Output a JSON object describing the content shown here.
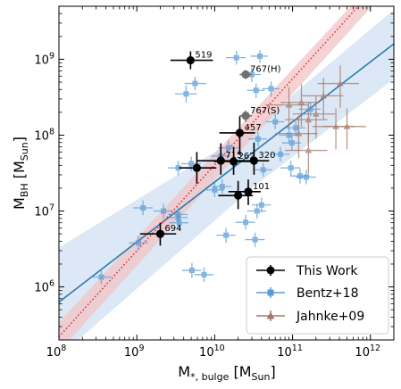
{
  "chart_data": {
    "type": "scatter",
    "xscale": "log",
    "yscale": "log",
    "xlim": [
      100000000.0,
      2000000000000.0
    ],
    "ylim": [
      200000.0,
      5000000000.0
    ],
    "xlabel": {
      "base": "M",
      "sub": "*, bulge",
      "unit_base": "M",
      "unit_sub": "Sun"
    },
    "ylabel": {
      "base": "M",
      "sub": "BH",
      "unit_base": "M",
      "unit_sub": "Sun"
    },
    "x_ticks": [
      {
        "value": 100000000.0,
        "base": "10",
        "exp": "8"
      },
      {
        "value": 1000000000.0,
        "base": "10",
        "exp": "9"
      },
      {
        "value": 10000000000.0,
        "base": "10",
        "exp": "10"
      },
      {
        "value": 100000000000.0,
        "base": "10",
        "exp": "11"
      },
      {
        "value": 1000000000000.0,
        "base": "10",
        "exp": "12"
      }
    ],
    "y_ticks": [
      {
        "value": 1000000.0,
        "base": "10",
        "exp": "6"
      },
      {
        "value": 10000000.0,
        "base": "10",
        "exp": "7"
      },
      {
        "value": 100000000.0,
        "base": "10",
        "exp": "8"
      },
      {
        "value": 1000000000.0,
        "base": "10",
        "exp": "9"
      }
    ],
    "grid": false,
    "legend_position": "bottom-right",
    "legend": [
      "This Work",
      "Bentz+18",
      "Jahnke+09"
    ],
    "colors": {
      "this_work": "#000000",
      "this_work_gray": "#6e6e6e",
      "bentz": "#5b9bd5",
      "jahnke": "#a47866",
      "fit_line": "#2a7ab0",
      "fit_band": "#c9dcf0",
      "dotted": "#e0242b",
      "dotted_band": "#f2c4c6"
    },
    "fit_line": {
      "points": [
        [
          100000000.0,
          630000.0
        ],
        [
          2000000000000.0,
          1600000000.0
        ]
      ]
    },
    "fit_band": {
      "upper": [
        [
          100000000.0,
          3300000.0
        ],
        [
          30000000000.0,
          120000000.0
        ],
        [
          2000000000000.0,
          4500000000.0
        ]
      ],
      "lower": [
        [
          100000000.0,
          120000.0
        ],
        [
          30000000000.0,
          20000000.0
        ],
        [
          2000000000000.0,
          550000000.0
        ]
      ]
    },
    "dotted_line": {
      "points": [
        [
          100000000.0,
          220000.0
        ],
        [
          1000000000000.0,
          7500000000.0
        ]
      ]
    },
    "dotted_band": {
      "upper": [
        [
          100000000.0,
          340000.0
        ],
        [
          800000000000.0,
          7500000000.0
        ]
      ],
      "lower": [
        [
          100000000.0,
          140000.0
        ],
        [
          1500000000000.0,
          7500000000.0
        ]
      ]
    },
    "series": [
      {
        "name": "This Work",
        "marker": "circle",
        "points": [
          {
            "x": 4900000000.0,
            "y": 970000000.0,
            "xerr": [
              2200000000.0,
              4600000000.0
            ],
            "yerr": [
              230000000.0,
              300000000.0
            ],
            "label": "519",
            "gray": false
          },
          {
            "x": 25000000000.0,
            "y": 630000000.0,
            "xerr": [
              4000000000.0,
              5000000000.0
            ],
            "yerr": [
              80000000.0,
              90000000.0
            ],
            "label": "767(H)",
            "gray": true
          },
          {
            "x": 25000000000.0,
            "y": 180000000.0,
            "xerr": [
              4000000000.0,
              5000000000.0
            ],
            "yerr": [
              30000000.0,
              30000000.0
            ],
            "label": "767(S)",
            "gray": true
          },
          {
            "x": 21000000000.0,
            "y": 107000000.0,
            "xerr": [
              9500000000.0,
              12000000000.0
            ],
            "yerr": [
              52000000.0,
              70000000.0
            ],
            "label": "457",
            "gray": false
          },
          {
            "x": 12000000000.0,
            "y": 46000000.0,
            "xerr": [
              6000000000.0,
              10000000000.0
            ],
            "yerr": [
              16000000.0,
              32000000.0
            ],
            "label": "715",
            "gray": false
          },
          {
            "x": 17500000000.0,
            "y": 45000000.0,
            "xerr": [
              7700000000.0,
              11000000000.0
            ],
            "yerr": [
              15000000.0,
              25000000.0
            ],
            "label": "262",
            "gray": false
          },
          {
            "x": 32000000000.0,
            "y": 46000000.0,
            "xerr": [
              14000000000.0,
              18000000000.0
            ],
            "yerr": [
              16000000.0,
              34000000.0
            ],
            "label": "320",
            "gray": false
          },
          {
            "x": 5900000000.0,
            "y": 37000000.0,
            "xerr": [
              2400000000.0,
              4600000000.0
            ],
            "yerr": [
              14000000.0,
              23000000.0
            ],
            "label": "",
            "gray": false
          },
          {
            "x": 20000000000.0,
            "y": 16000000.0,
            "xerr": [
              8900000000.0,
              11000000000.0
            ],
            "yerr": [
              5400000.0,
              8900000.0
            ],
            "label": "",
            "gray": false
          },
          {
            "x": 27000000000.0,
            "y": 18000000.0,
            "xerr": [
              12000000000.0,
              12000000000.0
            ],
            "yerr": [
              6000000.0,
              8000000.0
            ],
            "label": "101",
            "gray": false
          },
          {
            "x": 2000000000.0,
            "y": 5000000.0,
            "xerr": [
              900000000.0,
              1200000000.0
            ],
            "yerr": [
              1500000.0,
              2000000.0
            ],
            "label": "694",
            "gray": false
          }
        ]
      },
      {
        "name": "Bentz+18",
        "marker": "square",
        "points": [
          {
            "x": 5600000000.0,
            "y": 480000000.0,
            "xerr": [
              1500000000.0,
              2200000000.0
            ],
            "yerr": [
              90000000.0,
              110000000.0
            ]
          },
          {
            "x": 19000000000.0,
            "y": 1050000000.0,
            "xerr": [
              5000000000.0,
              6000000000.0
            ],
            "yerr": [
              200000000.0,
              240000000.0
            ]
          },
          {
            "x": 4300000000.0,
            "y": 350000000.0,
            "xerr": [
              1200000000.0,
              1600000000.0
            ],
            "yerr": [
              80000000.0,
              100000000.0
            ]
          },
          {
            "x": 38000000000.0,
            "y": 1100000000.0,
            "xerr": [
              9000000000.0,
              10000000000.0
            ],
            "yerr": [
              200000000.0,
              220000000.0
            ]
          },
          {
            "x": 30000000000.0,
            "y": 630000000.0,
            "xerr": [
              7000000000.0,
              9000000000.0
            ],
            "yerr": [
              130000000.0,
              150000000.0
            ]
          },
          {
            "x": 34000000000.0,
            "y": 390000000.0,
            "xerr": [
              8000000000.0,
              10000000000.0
            ],
            "yerr": [
              80000000.0,
              90000000.0
            ]
          },
          {
            "x": 53000000000.0,
            "y": 410000000.0,
            "xerr": [
              12000000000.0,
              15000000000.0
            ],
            "yerr": [
              90000000.0,
              100000000.0
            ]
          },
          {
            "x": 170000000000.0,
            "y": 220000000.0,
            "xerr": [
              50000000000.0,
              60000000000.0
            ],
            "yerr": [
              45000000.0,
              55000000.0
            ]
          },
          {
            "x": 60000000000.0,
            "y": 150000000.0,
            "xerr": [
              15000000000.0,
              18000000000.0
            ],
            "yerr": [
              30000000.0,
              40000000.0
            ]
          },
          {
            "x": 110000000000.0,
            "y": 125000000.0,
            "xerr": [
              30000000000.0,
              35000000000.0
            ],
            "yerr": [
              25000000.0,
              30000000.0
            ]
          },
          {
            "x": 90000000000.0,
            "y": 100000000.0,
            "xerr": [
              23000000000.0,
              28000000000.0
            ],
            "yerr": [
              20000000.0,
              25000000.0
            ]
          },
          {
            "x": 36000000000.0,
            "y": 89000000.0,
            "xerr": [
              9000000000.0,
              11000000000.0
            ],
            "yerr": [
              18000000.0,
              22000000.0
            ]
          },
          {
            "x": 98000000000.0,
            "y": 79000000.0,
            "xerr": [
              25000000000.0,
              30000000000.0
            ],
            "yerr": [
              16000000.0,
              20000000.0
            ]
          },
          {
            "x": 70000000000.0,
            "y": 56000000.0,
            "xerr": [
              18000000000.0,
              22000000000.0
            ],
            "yerr": [
              11000000.0,
              14000000.0
            ]
          },
          {
            "x": 15000000000.0,
            "y": 68000000.0,
            "xerr": [
              4000000000.0,
              5000000000.0
            ],
            "yerr": [
              14000000.0,
              17000000.0
            ]
          },
          {
            "x": 12000000000.0,
            "y": 53000000.0,
            "xerr": [
              3000000000.0,
              3800000000.0
            ],
            "yerr": [
              11000000.0,
              13000000.0
            ]
          },
          {
            "x": 3400000000.0,
            "y": 37000000.0,
            "xerr": [
              900000000.0,
              1100000000.0
            ],
            "yerr": [
              7500000.0,
              9000000.0
            ]
          },
          {
            "x": 5000000000.0,
            "y": 42000000.0,
            "xerr": [
              1300000000.0,
              1600000000.0
            ],
            "yerr": [
              8500000.0,
              10000000.0
            ]
          },
          {
            "x": 95000000000.0,
            "y": 37000000.0,
            "xerr": [
              25000000000.0,
              30000000000.0
            ],
            "yerr": [
              7500000.0,
              9000000.0
            ]
          },
          {
            "x": 42000000000.0,
            "y": 35000000.0,
            "xerr": [
              11000000000.0,
              13000000000.0
            ],
            "yerr": [
              7000000.0,
              8500000.0
            ]
          },
          {
            "x": 125000000000.0,
            "y": 29000000.0,
            "xerr": [
              32000000000.0,
              40000000000.0
            ],
            "yerr": [
              6000000.0,
              7000000.0
            ]
          },
          {
            "x": 150000000000.0,
            "y": 28000000.0,
            "xerr": [
              40000000000.0,
              50000000000.0
            ],
            "yerr": [
              5600000.0,
              7000000.0
            ]
          },
          {
            "x": 12500000000.0,
            "y": 21000000.0,
            "xerr": [
              3200000000.0,
              4000000000.0
            ],
            "yerr": [
              4200000.0,
              5200000.0
            ]
          },
          {
            "x": 10000000000.0,
            "y": 19000000.0,
            "xerr": [
              2600000000.0,
              3200000000.0
            ],
            "yerr": [
              3800000.0,
              4700000.0
            ]
          },
          {
            "x": 40000000000.0,
            "y": 12000000.0,
            "xerr": [
              10000000000.0,
              13000000000.0
            ],
            "yerr": [
              2400000.0,
              3000000.0
            ]
          },
          {
            "x": 35000000000.0,
            "y": 10000000.0,
            "xerr": [
              9000000000.0,
              11000000000.0
            ],
            "yerr": [
              2000000.0,
              2500000.0
            ]
          },
          {
            "x": 1200000000.0,
            "y": 11000000.0,
            "xerr": [
              300000000.0,
              400000000.0
            ],
            "yerr": [
              2200000.0,
              2800000.0
            ]
          },
          {
            "x": 2200000000.0,
            "y": 10000000.0,
            "xerr": [
              550000000.0,
              700000000.0
            ],
            "yerr": [
              2000000.0,
              2500000.0
            ]
          },
          {
            "x": 3400000000.0,
            "y": 9000000.0,
            "xerr": [
              850000000.0,
              1100000000.0
            ],
            "yerr": [
              1800000.0,
              2200000.0
            ]
          },
          {
            "x": 3400000000.0,
            "y": 8200000.0,
            "xerr": [
              850000000.0,
              1100000000.0
            ],
            "yerr": [
              1700000.0,
              2000000.0
            ]
          },
          {
            "x": 3500000000.0,
            "y": 7000000.0,
            "xerr": [
              900000000.0,
              1100000000.0
            ],
            "yerr": [
              1400000.0,
              1700000.0
            ]
          },
          {
            "x": 25000000000.0,
            "y": 7100000.0,
            "xerr": [
              6500000000.0,
              8000000000.0
            ],
            "yerr": [
              1400000.0,
              1800000.0
            ]
          },
          {
            "x": 33000000000.0,
            "y": 4200000.0,
            "xerr": [
              8500000000.0,
              11000000000.0
            ],
            "yerr": [
              850000.0,
              1000000.0
            ]
          },
          {
            "x": 14000000000.0,
            "y": 4800000.0,
            "xerr": [
              3500000000.0,
              4500000000.0
            ],
            "yerr": [
              1000000.0,
              1200000.0
            ]
          },
          {
            "x": 1050000000.0,
            "y": 3800000.0,
            "xerr": [
              260000000.0,
              340000000.0
            ],
            "yerr": [
              760000.0,
              950000.0
            ]
          },
          {
            "x": 350000000.0,
            "y": 1350000.0,
            "xerr": [
              90000000.0,
              110000000.0
            ],
            "yerr": [
              270000.0,
              340000.0
            ]
          },
          {
            "x": 5100000000.0,
            "y": 1650000.0,
            "xerr": [
              1300000000.0,
              1600000000.0
            ],
            "yerr": [
              330000.0,
              410000.0
            ]
          },
          {
            "x": 7300000000.0,
            "y": 1450000.0,
            "xerr": [
              1800000000.0,
              2400000000.0
            ],
            "yerr": [
              290000.0,
              360000.0
            ]
          }
        ]
      },
      {
        "name": "Jahnke+09",
        "marker": "triangle",
        "points": [
          {
            "x": 410000000000.0,
            "y": 480000000.0,
            "xerr": [
              200000000000.0,
              300000000000.0
            ],
            "yerr": [
              250000000.0,
              350000000.0
            ]
          },
          {
            "x": 250000000000.0,
            "y": 330000000.0,
            "xerr": [
              120000000000.0,
              200000000000.0
            ],
            "yerr": [
              170000000.0,
              240000000.0
            ]
          },
          {
            "x": 130000000000.0,
            "y": 270000000.0,
            "xerr": [
              60000000000.0,
              90000000000.0
            ],
            "yerr": [
              140000000.0,
              200000000.0
            ]
          },
          {
            "x": 90000000000.0,
            "y": 250000000.0,
            "xerr": [
              45000000000.0,
              70000000000.0
            ],
            "yerr": [
              130000000.0,
              180000000.0
            ]
          },
          {
            "x": 200000000000.0,
            "y": 190000000.0,
            "xerr": [
              100000000000.0,
              150000000000.0
            ],
            "yerr": [
              100000000.0,
              140000000.0
            ]
          },
          {
            "x": 360000000000.0,
            "y": 130000000.0,
            "xerr": [
              180000000000.0,
              270000000000.0
            ],
            "yerr": [
              65000000.0,
              95000000.0
            ]
          },
          {
            "x": 500000000000.0,
            "y": 130000000.0,
            "xerr": [
              250000000000.0,
              380000000000.0
            ],
            "yerr": [
              65000000.0,
              95000000.0
            ]
          },
          {
            "x": 160000000000.0,
            "y": 160000000.0,
            "xerr": [
              80000000000.0,
              120000000000.0
            ],
            "yerr": [
              80000000.0,
              110000000.0
            ]
          },
          {
            "x": 120000000000.0,
            "y": 105000000.0,
            "xerr": [
              60000000000.0,
              90000000000.0
            ],
            "yerr": [
              55000000.0,
              75000000.0
            ]
          },
          {
            "x": 160000000000.0,
            "y": 63000000.0,
            "xerr": [
              80000000000.0,
              120000000000.0
            ],
            "yerr": [
              32000000.0,
              45000000.0
            ]
          }
        ]
      }
    ]
  }
}
